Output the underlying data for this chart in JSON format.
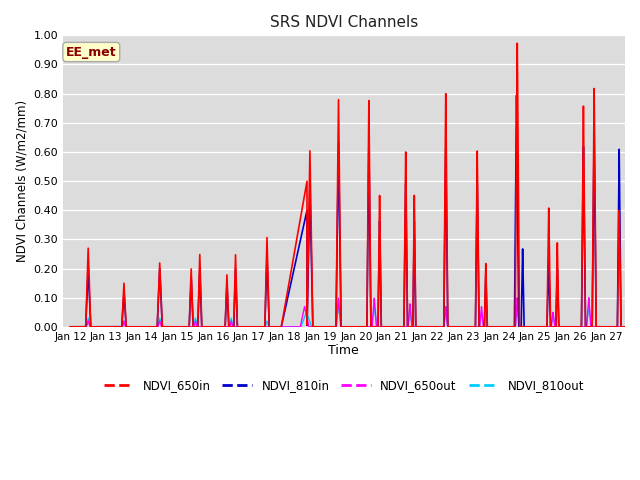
{
  "title": "SRS NDVI Channels",
  "xlabel": "Time",
  "ylabel": "NDVI Channels (W/m2/mm)",
  "ylim": [
    0.0,
    1.0
  ],
  "yticks": [
    0.0,
    0.1,
    0.2,
    0.3,
    0.4,
    0.5,
    0.6,
    0.7,
    0.8,
    0.9,
    1.0
  ],
  "background_color": "#dcdcdc",
  "plot_bg_color": "#dcdcdc",
  "annotation_text": "EE_met",
  "annotation_bg": "#ffffcc",
  "annotation_border": "#8b0000",
  "series": {
    "NDVI_650in": {
      "color": "#ff0000",
      "linewidth": 1.2
    },
    "NDVI_810in": {
      "color": "#0000cc",
      "linewidth": 1.2
    },
    "NDVI_650out": {
      "color": "#ff00ff",
      "linewidth": 1.0
    },
    "NDVI_810out": {
      "color": "#00ccff",
      "linewidth": 1.0
    }
  },
  "xtick_labels": [
    "Jan 12",
    "Jan 13",
    "Jan 14",
    "Jan 15",
    "Jan 16",
    "Jan 17",
    "Jan 18",
    "Jan 19",
    "Jan 20",
    "Jan 21",
    "Jan 22",
    "Jan 23",
    "Jan 24",
    "Jan 25",
    "Jan 26",
    "Jan 27"
  ],
  "xtick_positions": [
    0,
    1,
    2,
    3,
    4,
    5,
    6,
    7,
    8,
    9,
    10,
    11,
    12,
    13,
    14,
    15
  ],
  "figsize": [
    6.4,
    4.8
  ],
  "dpi": 100
}
